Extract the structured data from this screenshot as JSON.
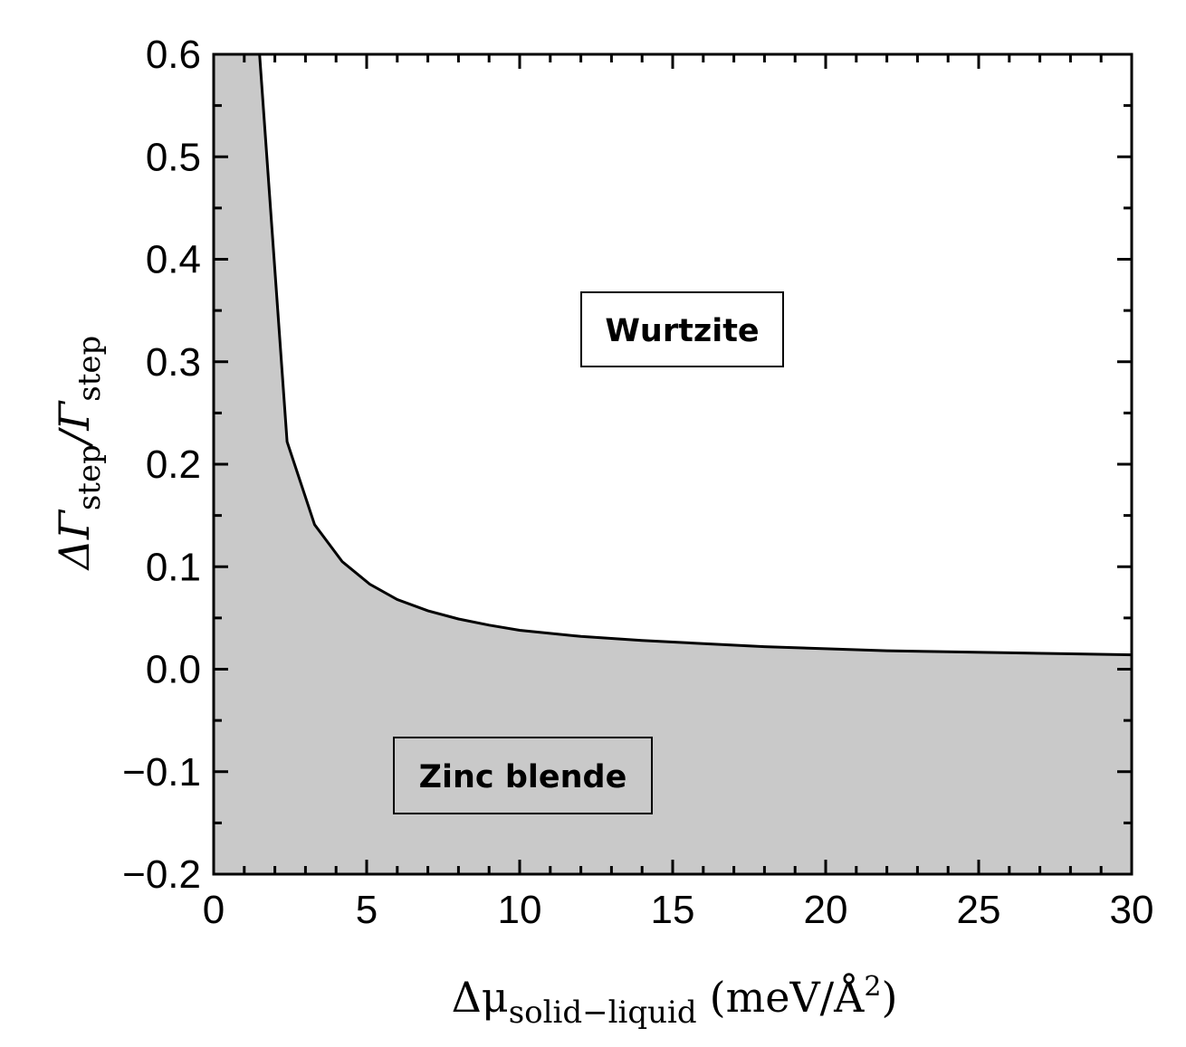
{
  "chart_data": {
    "type": "area",
    "xlim": [
      0,
      30
    ],
    "ylim": [
      -0.2,
      0.6
    ],
    "x_ticks": [
      "0",
      "5",
      "10",
      "15",
      "20",
      "25",
      "30"
    ],
    "y_ticks": [
      "−0.2",
      "−0.1",
      "0.0",
      "0.1",
      "0.2",
      "0.3",
      "0.4",
      "0.5",
      "0.6"
    ],
    "x_tick_values": [
      0,
      5,
      10,
      15,
      20,
      25,
      30
    ],
    "y_tick_values": [
      -0.2,
      -0.1,
      0.0,
      0.1,
      0.2,
      0.3,
      0.4,
      0.5,
      0.6
    ],
    "xlabel": {
      "base": "Δμ",
      "subscript": "solid−liquid",
      "unit_prefix": "(meV/Å",
      "superscript": "2",
      "unit_suffix": ")"
    },
    "ylabel": {
      "base1": "ΔΓ",
      "sub1": "step",
      "slash": "/Γ",
      "sub2": "step"
    },
    "boundary": {
      "x": [
        1.5,
        2.4,
        3.3,
        4.2,
        5.1,
        6.0,
        7.0,
        8.0,
        9.0,
        10.0,
        12.0,
        14.0,
        16.0,
        18.0,
        20.0,
        22.0,
        24.0,
        26.0,
        28.0,
        30.0
      ],
      "y": [
        0.6,
        0.222,
        0.141,
        0.105,
        0.083,
        0.068,
        0.057,
        0.049,
        0.043,
        0.038,
        0.032,
        0.028,
        0.025,
        0.022,
        0.02,
        0.018,
        0.017,
        0.016,
        0.015,
        0.014
      ]
    },
    "regions": [
      {
        "label": "Wurtzite",
        "fill": "#ffffff"
      },
      {
        "label": "Zinc blende",
        "fill": "#c9c9c9"
      }
    ],
    "grid": false,
    "line_color": "#000000"
  }
}
